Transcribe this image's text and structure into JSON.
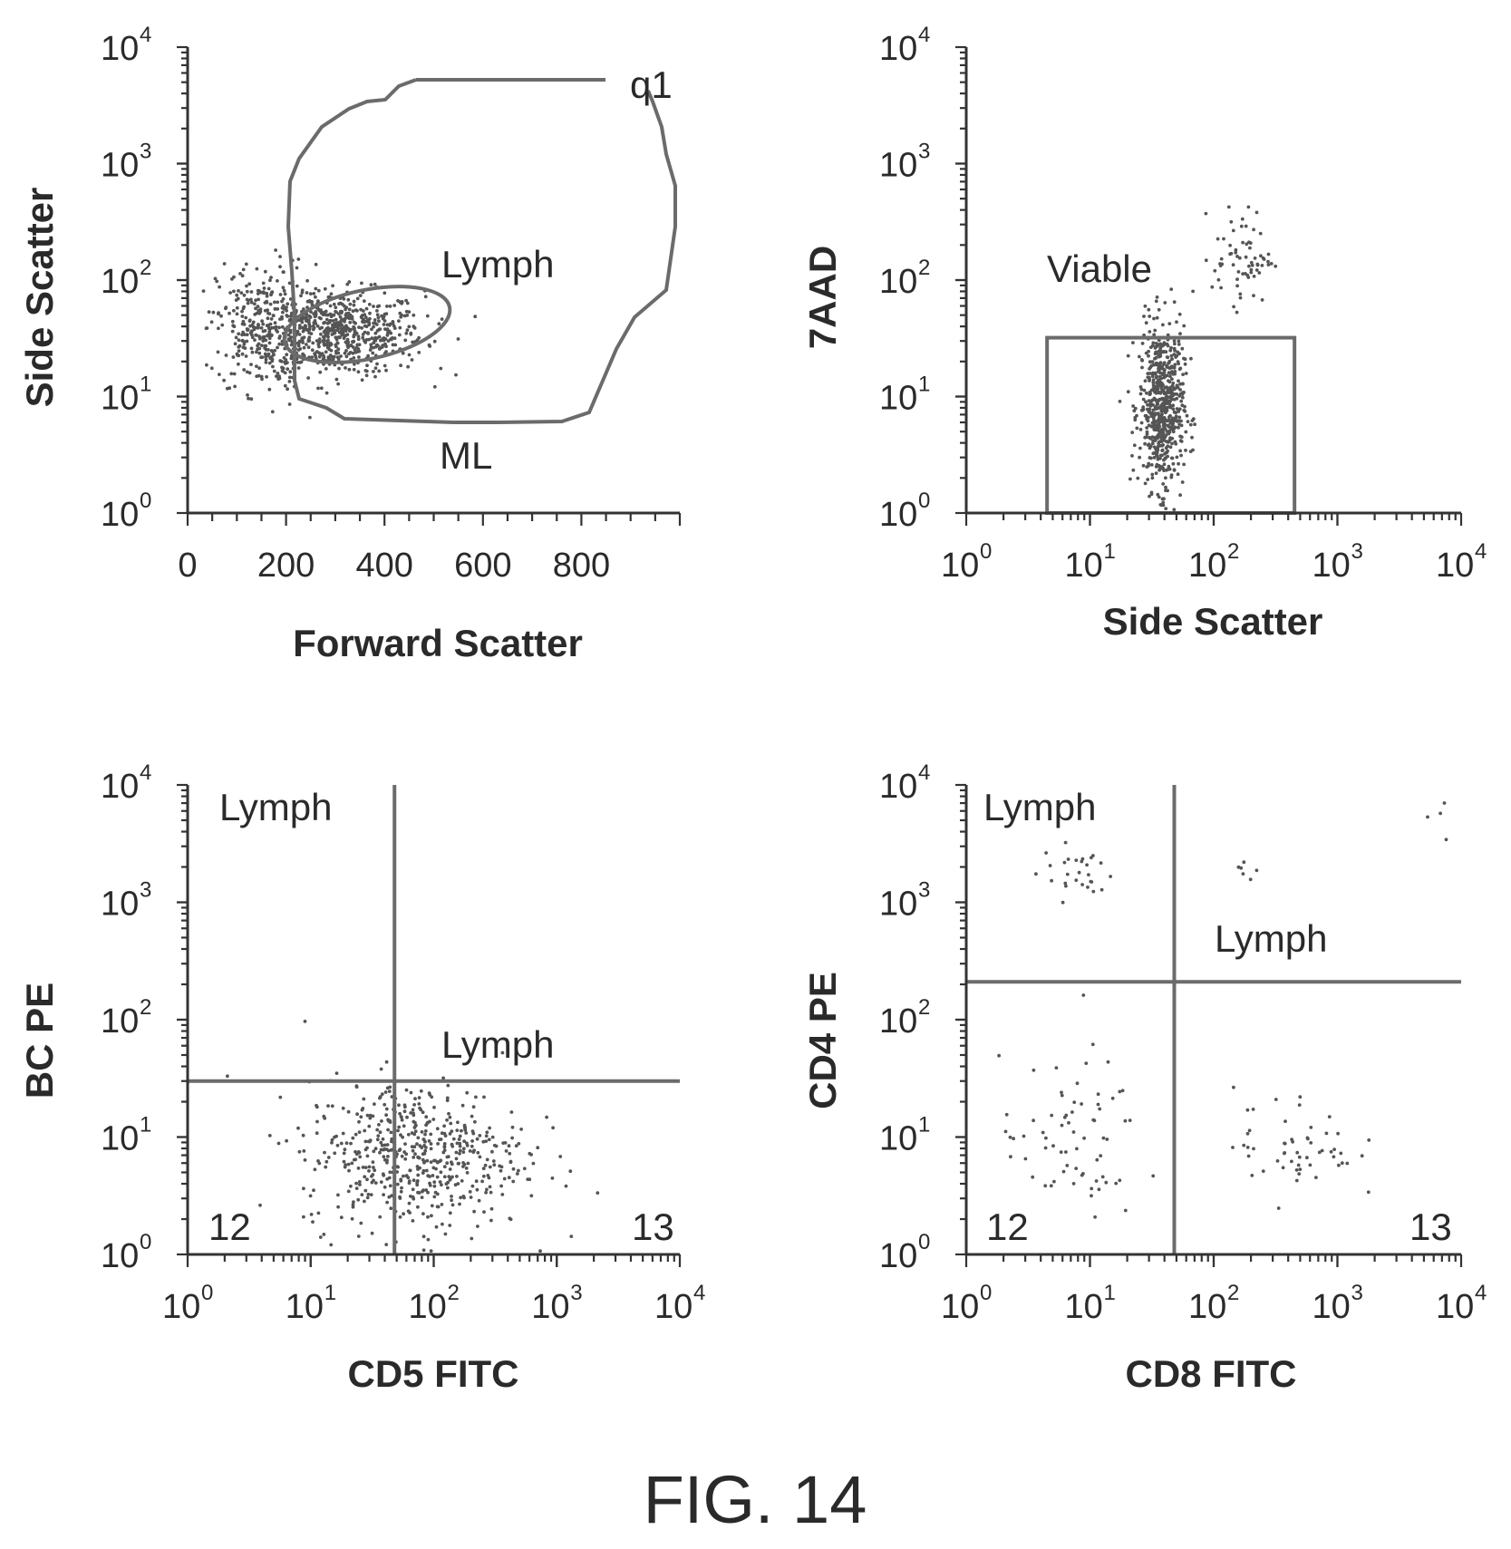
{
  "figure_caption": "FIG. 14",
  "chart_data": [
    {
      "type": "scatter",
      "panel": "top-left",
      "xlabel": "Forward Scatter",
      "ylabel": "Side Scatter",
      "x_scale": "linear",
      "y_scale": "log",
      "xlim": [
        0,
        1000
      ],
      "ylim": [
        1,
        10000
      ],
      "x_ticks": [
        "0",
        "200",
        "400",
        "600",
        "800"
      ],
      "x_tick_values": [
        0,
        200,
        400,
        600,
        800
      ],
      "y_tick_exponents": [
        "0",
        "1",
        "2",
        "3",
        "4"
      ],
      "gates": [
        {
          "label": "q1",
          "shape": "freehand polygon (outer)"
        },
        {
          "label": "Lymph",
          "shape": "ellipse"
        },
        {
          "label": "ML",
          "shape": "freehand polygon (lower boundary)"
        }
      ],
      "populations": [
        {
          "x_center": 300,
          "y_center": 35,
          "x_spread": 90,
          "y_log_spread": 0.18,
          "n": 700
        },
        {
          "x_center": 150,
          "y_center": 40,
          "x_spread": 45,
          "y_log_spread": 0.28,
          "n": 260
        }
      ]
    },
    {
      "type": "scatter",
      "panel": "top-right",
      "xlabel": "Side Scatter",
      "ylabel": "7AAD",
      "x_scale": "log",
      "y_scale": "log",
      "xlim": [
        1,
        10000
      ],
      "ylim": [
        1,
        10000
      ],
      "x_tick_exponents": [
        "0",
        "1",
        "2",
        "3",
        "4"
      ],
      "y_tick_exponents": [
        "0",
        "1",
        "2",
        "3",
        "4"
      ],
      "gates": [
        {
          "label": "Viable",
          "shape": "rectangle",
          "x_range": [
            4.5,
            450
          ],
          "y_range": [
            1,
            32
          ]
        }
      ],
      "populations": [
        {
          "x_center": 38,
          "y_center": 8,
          "x_log_spread": 0.09,
          "y_log_spread": 0.35,
          "n": 650
        },
        {
          "x_center": 170,
          "y_center": 160,
          "x_log_spread": 0.12,
          "y_log_spread": 0.2,
          "n": 70
        }
      ]
    },
    {
      "type": "scatter",
      "panel": "bottom-left",
      "xlabel": "CD5 FITC",
      "ylabel": "BC PE",
      "x_scale": "log",
      "y_scale": "log",
      "xlim": [
        1,
        10000
      ],
      "ylim": [
        1,
        10000
      ],
      "x_tick_exponents": [
        "0",
        "1",
        "2",
        "3",
        "4"
      ],
      "y_tick_exponents": [
        "0",
        "1",
        "2",
        "3",
        "4"
      ],
      "quadrant_x": 48,
      "quadrant_y": 30,
      "gates": [
        {
          "label": "Lymph",
          "quadrant": "upper-left"
        },
        {
          "label": "Lymph",
          "quadrant": "upper-right"
        },
        {
          "label": "12",
          "quadrant": "lower-left"
        },
        {
          "label": "13",
          "quadrant": "lower-right"
        }
      ],
      "populations": [
        {
          "x_center": 70,
          "y_center": 7,
          "x_log_spread": 0.45,
          "y_log_spread": 0.32,
          "n": 560
        }
      ]
    },
    {
      "type": "scatter",
      "panel": "bottom-right",
      "xlabel": "CD8 FITC",
      "ylabel": "CD4 PE",
      "x_scale": "log",
      "y_scale": "log",
      "xlim": [
        1,
        10000
      ],
      "ylim": [
        1,
        10000
      ],
      "x_tick_exponents": [
        "0",
        "1",
        "2",
        "3",
        "4"
      ],
      "y_tick_exponents": [
        "0",
        "1",
        "2",
        "3",
        "4"
      ],
      "quadrant_x": 48,
      "quadrant_y": 210,
      "gates": [
        {
          "label": "Lymph",
          "quadrant": "upper-left"
        },
        {
          "label": "Lymph",
          "quadrant": "upper-right"
        },
        {
          "label": "12",
          "quadrant": "lower-left"
        },
        {
          "label": "13",
          "quadrant": "lower-right"
        }
      ],
      "populations": [
        {
          "x_center": 8,
          "y_center": 1800,
          "x_log_spread": 0.15,
          "y_log_spread": 0.12,
          "n": 28
        },
        {
          "x_center": 7,
          "y_center": 9,
          "x_log_spread": 0.28,
          "y_log_spread": 0.35,
          "n": 70
        },
        {
          "x_center": 450,
          "y_center": 9,
          "x_log_spread": 0.25,
          "y_log_spread": 0.25,
          "n": 55
        },
        {
          "x_center": 180,
          "y_center": 1800,
          "x_log_spread": 0.06,
          "y_log_spread": 0.04,
          "n": 6
        },
        {
          "x_center": 6000,
          "y_center": 5000,
          "x_log_spread": 0.06,
          "y_log_spread": 0.1,
          "n": 4
        }
      ]
    }
  ]
}
